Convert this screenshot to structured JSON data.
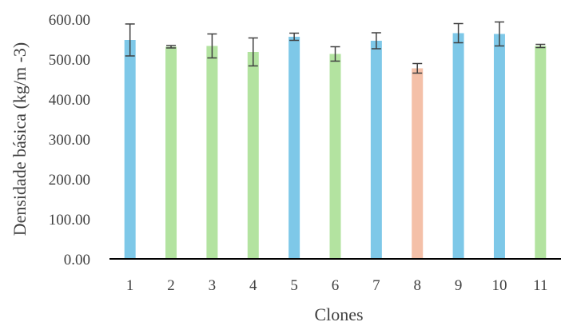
{
  "chart_data": {
    "type": "bar",
    "categories": [
      "1",
      "2",
      "3",
      "4",
      "5",
      "6",
      "7",
      "8",
      "9",
      "10",
      "11"
    ],
    "values": [
      548,
      531,
      533,
      518,
      556,
      513,
      546,
      477,
      565,
      563,
      533
    ],
    "errors": [
      40,
      3,
      30,
      35,
      9,
      18,
      20,
      12,
      24,
      30,
      4
    ],
    "bar_colors": [
      "#7ec8e8",
      "#b3e3a0",
      "#b3e3a0",
      "#b3e3a0",
      "#7ec8e8",
      "#b3e3a0",
      "#7ec8e8",
      "#f4c0a8",
      "#7ec8e8",
      "#7ec8e8",
      "#b3e3a0"
    ],
    "xlabel": "Clones",
    "ylabel": "Densidade básica (kg/m  -3)",
    "ylim": [
      0,
      600
    ],
    "yticks": [
      "0.00",
      "100.00",
      "200.00",
      "300.00",
      "400.00",
      "500.00",
      "600.00"
    ],
    "grid": false,
    "legend": "none",
    "colors": {
      "axis": "#000000",
      "text": "#404040",
      "errorbar": "#404040"
    }
  }
}
